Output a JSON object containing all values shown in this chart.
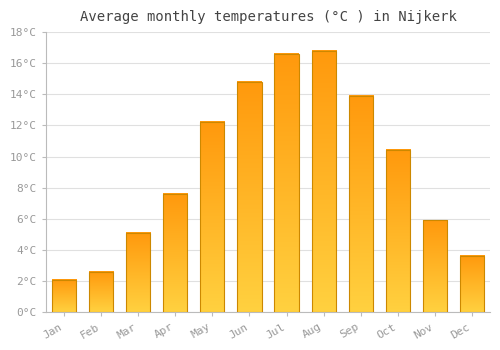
{
  "title": "Average monthly temperatures (°C ) in Nijkerk",
  "months": [
    "Jan",
    "Feb",
    "Mar",
    "Apr",
    "May",
    "Jun",
    "Jul",
    "Aug",
    "Sep",
    "Oct",
    "Nov",
    "Dec"
  ],
  "temperatures": [
    2.1,
    2.6,
    5.1,
    7.6,
    12.2,
    14.8,
    16.6,
    16.8,
    13.9,
    10.4,
    5.9,
    3.6
  ],
  "bar_color_bottom": "#FFD060",
  "bar_color_top": "#FFA020",
  "bar_edge_color": "#CC8800",
  "ylim": [
    0,
    18
  ],
  "yticks": [
    0,
    2,
    4,
    6,
    8,
    10,
    12,
    14,
    16,
    18
  ],
  "ytick_labels": [
    "0°C",
    "2°C",
    "4°C",
    "6°C",
    "8°C",
    "10°C",
    "12°C",
    "14°C",
    "16°C",
    "18°C"
  ],
  "background_color": "#ffffff",
  "grid_color": "#e0e0e0",
  "title_fontsize": 10,
  "tick_fontsize": 8,
  "tick_color": "#999999",
  "bar_width": 0.65,
  "figsize": [
    5.0,
    3.5
  ],
  "dpi": 100
}
